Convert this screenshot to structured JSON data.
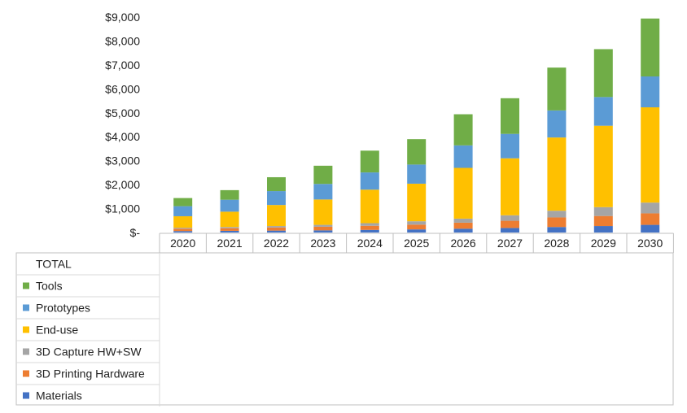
{
  "chart_data": {
    "type": "bar",
    "stacked": true,
    "title": "",
    "xlabel": "",
    "ylabel": "",
    "ylim": [
      0,
      9000
    ],
    "y_ticks": [
      {
        "value": 0,
        "label": "$-"
      },
      {
        "value": 1000,
        "label": "$1,000"
      },
      {
        "value": 2000,
        "label": "$2,000"
      },
      {
        "value": 3000,
        "label": "$3,000"
      },
      {
        "value": 4000,
        "label": "$4,000"
      },
      {
        "value": 5000,
        "label": "$5,000"
      },
      {
        "value": 6000,
        "label": "$6,000"
      },
      {
        "value": 7000,
        "label": "$7,000"
      },
      {
        "value": 8000,
        "label": "$8,000"
      },
      {
        "value": 9000,
        "label": "$9,000"
      }
    ],
    "grid": false,
    "legend_position": "bottom-left data table",
    "legend_header": "TOTAL",
    "categories": [
      "2020",
      "2021",
      "2022",
      "2023",
      "2024",
      "2025",
      "2026",
      "2027",
      "2028",
      "2029",
      "2030"
    ],
    "series": [
      {
        "name": "Materials",
        "color": "#4472C4",
        "values": [
          60,
          70,
          80,
          90,
          110,
          130,
          160,
          190,
          230,
          270,
          320
        ]
      },
      {
        "name": "3D Printing Hardware",
        "color": "#ED7D31",
        "values": [
          100,
          110,
          130,
          150,
          170,
          200,
          250,
          300,
          400,
          420,
          480
        ]
      },
      {
        "name": "3D Capture HW+SW",
        "color": "#A5A5A5",
        "values": [
          40,
          50,
          60,
          80,
          110,
          140,
          170,
          230,
          280,
          370,
          450
        ]
      },
      {
        "name": "End-use",
        "color": "#FFC000",
        "values": [
          480,
          640,
          880,
          1060,
          1400,
          1570,
          2120,
          2380,
          3060,
          3400,
          3980
        ]
      },
      {
        "name": "Prototypes",
        "color": "#5B9BD5",
        "values": [
          420,
          500,
          580,
          650,
          720,
          800,
          940,
          1020,
          1130,
          1200,
          1290
        ]
      },
      {
        "name": "Tools",
        "color": "#70AD47",
        "values": [
          340,
          400,
          580,
          760,
          910,
          1060,
          1300,
          1490,
          1790,
          2000,
          2420
        ]
      }
    ]
  }
}
